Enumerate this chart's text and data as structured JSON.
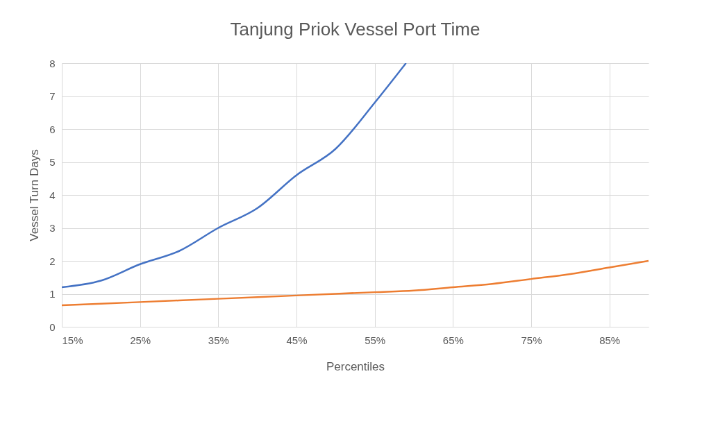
{
  "chart_data": {
    "type": "line",
    "title": "Tanjung Priok Vessel Port Time",
    "xlabel": "Percentiles",
    "ylabel": "Vessel Turn Days",
    "xlim": [
      15,
      90
    ],
    "xticks": [
      {
        "value": 15,
        "label": "15%"
      },
      {
        "value": 25,
        "label": "25%"
      },
      {
        "value": 35,
        "label": "35%"
      },
      {
        "value": 45,
        "label": "45%"
      },
      {
        "value": 55,
        "label": "55%"
      },
      {
        "value": 65,
        "label": "65%"
      },
      {
        "value": 75,
        "label": "75%"
      },
      {
        "value": 85,
        "label": "85%"
      }
    ],
    "ylim": [
      0,
      8
    ],
    "yticks": [
      0,
      1,
      2,
      3,
      4,
      5,
      6,
      7,
      8
    ],
    "grid": true,
    "series": [
      {
        "color": "#4472c4",
        "x": [
          15,
          20,
          25,
          30,
          35,
          40,
          45,
          50,
          55,
          59
        ],
        "values": [
          1.2,
          1.4,
          1.9,
          2.3,
          3.0,
          3.6,
          4.6,
          5.4,
          6.8,
          8.0
        ]
      },
      {
        "color": "#ed7d31",
        "x": [
          15,
          25,
          35,
          45,
          55,
          60,
          65,
          70,
          75,
          80,
          85,
          90
        ],
        "values": [
          0.65,
          0.75,
          0.85,
          0.95,
          1.05,
          1.1,
          1.2,
          1.3,
          1.45,
          1.6,
          1.8,
          2.0
        ]
      }
    ]
  }
}
